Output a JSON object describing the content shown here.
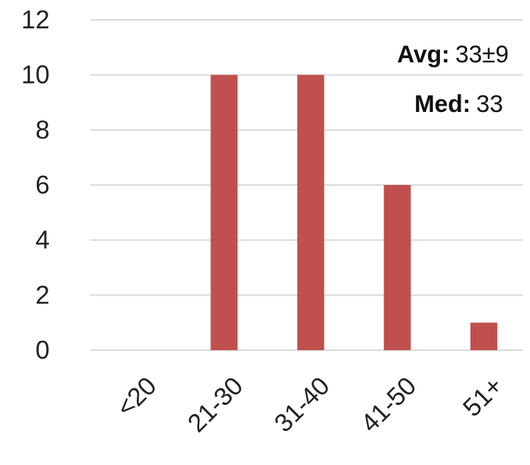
{
  "chart_data": {
    "type": "bar",
    "categories": [
      "<20",
      "21-30",
      "31-40",
      "41-50",
      "51+"
    ],
    "values": [
      0,
      10,
      10,
      6,
      1
    ],
    "ylim": [
      0,
      12
    ],
    "yticks": [
      "0",
      "2",
      "4",
      "6",
      "8",
      "10",
      "12"
    ],
    "grid": true,
    "bar_color": "#C0504D",
    "annotations": [
      {
        "label": "Avg:",
        "value": "33±9"
      },
      {
        "label": "Med:",
        "value": "33"
      }
    ]
  }
}
